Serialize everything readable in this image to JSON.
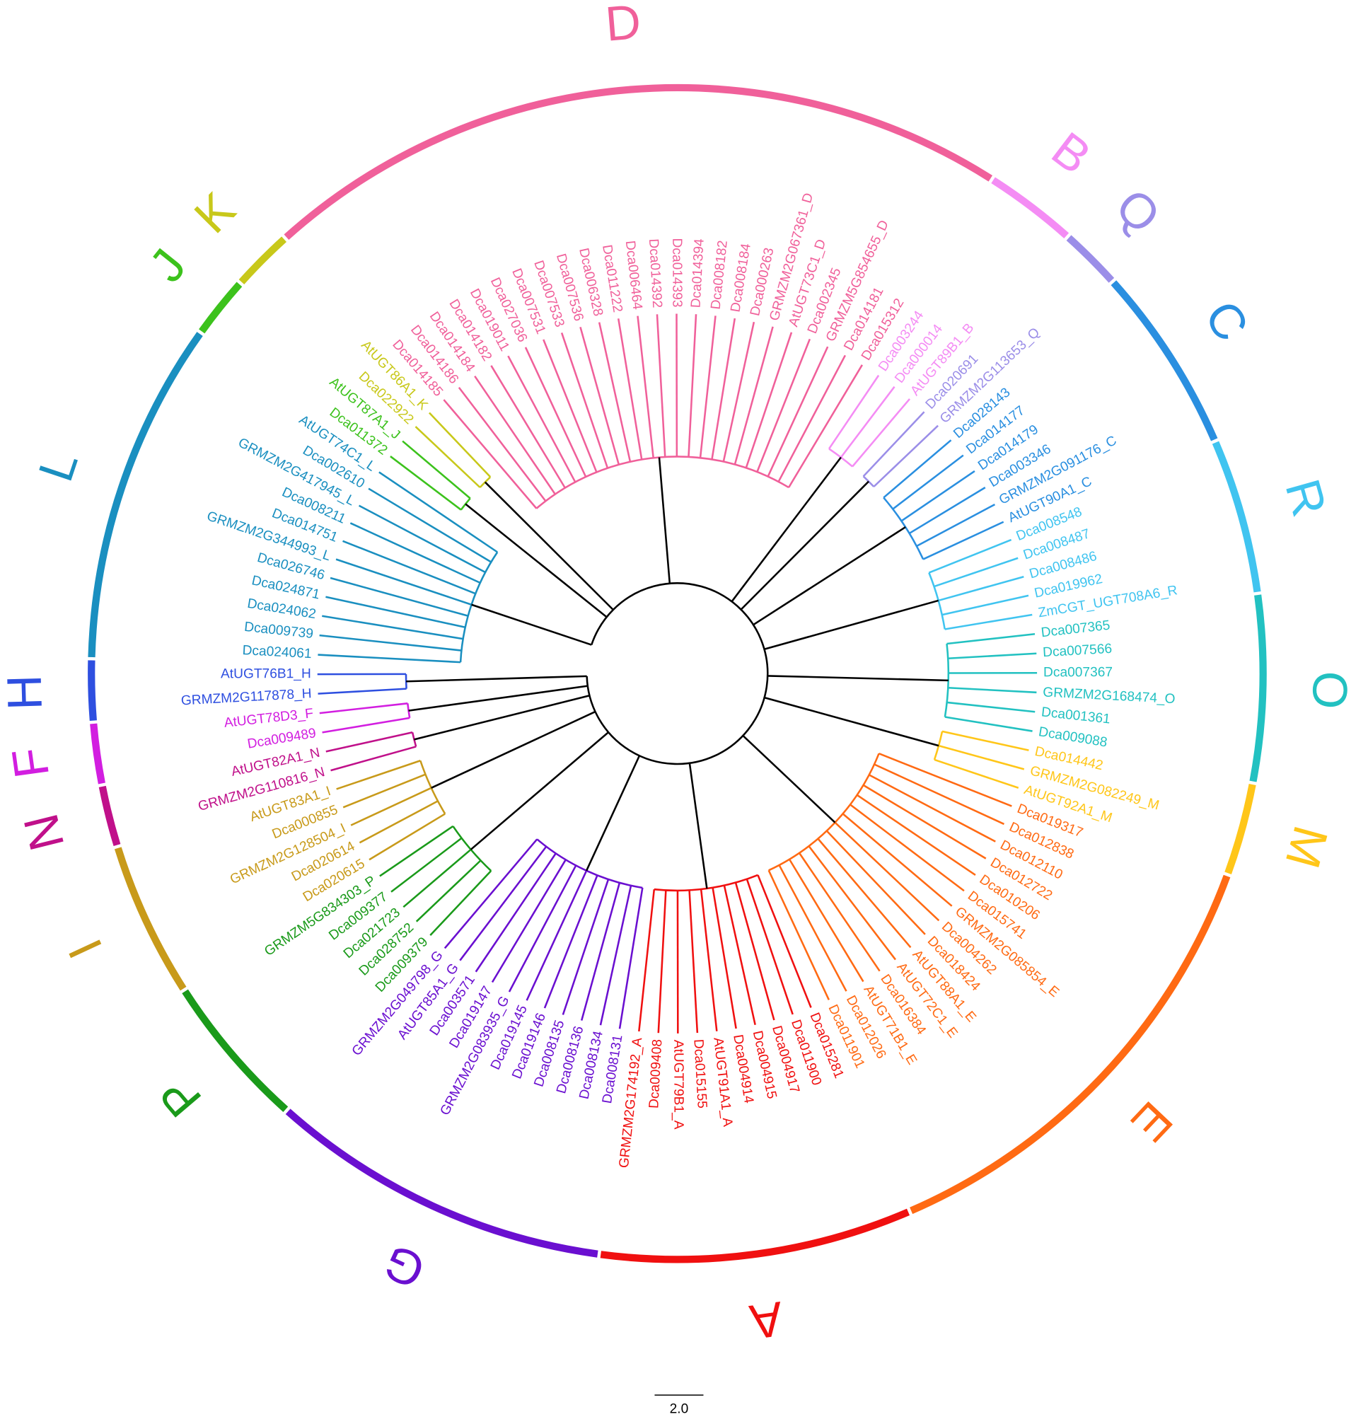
{
  "groups": [
    {
      "letter": "L",
      "color": "#1a8fc0",
      "leaves": [
        "Dca024061",
        "Dca009739",
        "Dca024062",
        "Dca024871",
        "Dca026746",
        "GRMZM2G344993_L",
        "Dca014751",
        "Dca008211",
        "GRMZM2G417945_L",
        "Dca002610",
        "AtUGT74C1_L"
      ]
    },
    {
      "letter": "J",
      "color": "#3cc21c",
      "leaves": [
        "Dca011372",
        "AtUGT87A1_J"
      ]
    },
    {
      "letter": "K",
      "color": "#c8c81a",
      "leaves": [
        "Dca022922",
        "AtUGT86A1_K"
      ]
    },
    {
      "letter": "D",
      "color": "#f0609a",
      "leaves": [
        "Dca014185",
        "Dca014186",
        "Dca014184",
        "Dca014182",
        "Dca019011",
        "Dca027036",
        "Dca007531",
        "Dca007533",
        "Dca007536",
        "Dca006328",
        "Dca011222",
        "Dca006464",
        "Dca014392",
        "Dca014393",
        "Dca014394",
        "Dca008182",
        "Dca008184",
        "Dca000263",
        "GRMZM2G067361_D",
        "AtUGT73C1_D",
        "Dca002345",
        "GRMZM5G854655_D",
        "Dca014181",
        "Dca015312"
      ]
    },
    {
      "letter": "B",
      "color": "#f48cf4",
      "leaves": [
        "Dca003244",
        "Dca000014",
        "AtUGT89B1_B"
      ]
    },
    {
      "letter": "Q",
      "color": "#9b8ee8",
      "leaves": [
        "Dca020691",
        "GRMZM2G113653_Q"
      ]
    },
    {
      "letter": "C",
      "color": "#2a8fe0",
      "leaves": [
        "Dca028143",
        "Dca014177",
        "Dca014179",
        "Dca003346",
        "GRMZM2G091176_C",
        "AtUGT90A1_C"
      ]
    },
    {
      "letter": "R",
      "color": "#40c4f0",
      "leaves": [
        "Dca008548",
        "Dca008487",
        "Dca008486",
        "Dca019962",
        "ZmCGT_UGT708A6_R"
      ]
    },
    {
      "letter": "O",
      "color": "#22c1c1",
      "leaves": [
        "Dca007365",
        "Dca007566",
        "Dca007367",
        "GRMZM2G168474_O",
        "Dca001361",
        "Dca009088"
      ]
    },
    {
      "letter": "M",
      "color": "#ffc619",
      "leaves": [
        "Dca014442",
        "GRMZM2G082249_M",
        "AtUGT92A1_M"
      ]
    },
    {
      "letter": "E",
      "color": "#ff6a13",
      "leaves": [
        "Dca019317",
        "Dca012838",
        "Dca012110",
        "Dca012722",
        "Dca010206",
        "Dca015741",
        "GRMZM2G085854_E",
        "Dca004262",
        "Dca018424",
        "AtUGT88A1_E",
        "AtUGT72C1_E",
        "Dca016384",
        "AtUGT71B1_E",
        "Dca012026",
        "Dca011901"
      ]
    },
    {
      "letter": "A",
      "color": "#f01010",
      "leaves": [
        "Dca015281",
        "Dca011900",
        "Dca004917",
        "Dca004915",
        "Dca004914",
        "AtUGT91A1_A",
        "Dca015155",
        "AtUGT79B1_A",
        "Dca009408",
        "GRMZM2G174192_A"
      ]
    },
    {
      "letter": "G",
      "color": "#6a0fd0",
      "leaves": [
        "Dca008131",
        "Dca008134",
        "Dca008136",
        "Dca008135",
        "Dca019146",
        "Dca019145",
        "GRMZM2G083935_G",
        "Dca019147",
        "Dca003571",
        "AtUGT85A1_G",
        "GRMZM2G049798_G"
      ]
    },
    {
      "letter": "P",
      "color": "#1a9a1a",
      "leaves": [
        "Dca009379",
        "Dca028752",
        "Dca021723",
        "Dca009377",
        "GRMZM5G834303_P"
      ]
    },
    {
      "letter": "I",
      "color": "#c89a1a",
      "leaves": [
        "Dca020615",
        "Dca020614",
        "GRMZM2G128504_I",
        "Dca000855",
        "AtUGT83A1_I"
      ]
    },
    {
      "letter": "N",
      "color": "#c0108a",
      "leaves": [
        "GRMZM2G110816_N",
        "AtUGT82A1_N"
      ]
    },
    {
      "letter": "F",
      "color": "#d21ee0",
      "leaves": [
        "Dca009489",
        "AtUGT78D3_F"
      ]
    },
    {
      "letter": "H",
      "color": "#2e4fe0",
      "leaves": [
        "GRMZM2G117878_H",
        "AtUGT76B1_H"
      ]
    }
  ],
  "scale_label": "2.0"
}
